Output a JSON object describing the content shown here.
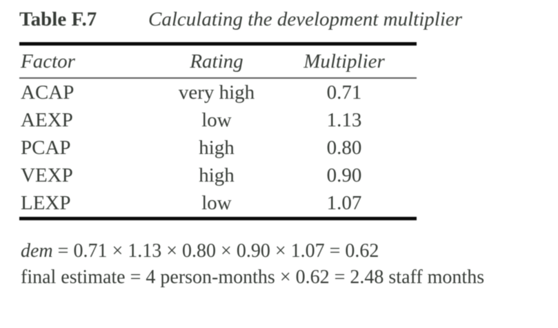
{
  "table": {
    "label": "Table F.7",
    "caption": "Calculating the development multiplier",
    "columns": [
      "Factor",
      "Rating",
      "Multiplier"
    ],
    "rows": [
      {
        "factor": "ACAP",
        "rating": "very high",
        "multiplier": "0.71"
      },
      {
        "factor": "AEXP",
        "rating": "low",
        "multiplier": "1.13"
      },
      {
        "factor": "PCAP",
        "rating": "high",
        "multiplier": "0.80"
      },
      {
        "factor": "VEXP",
        "rating": "high",
        "multiplier": "0.90"
      },
      {
        "factor": "LEXP",
        "rating": "low",
        "multiplier": "1.07"
      }
    ]
  },
  "formulas": {
    "dem_variable": "dem",
    "dem_expression": " = 0.71 × 1.13 × 0.80 × 0.90 × 1.07 = 0.62",
    "final_estimate": "final estimate = 4 person-months × 0.62 = 2.48 staff months"
  },
  "colors": {
    "text": "#373c37",
    "rule": "#0c0c0c",
    "rule-thin": "#5a5a5a",
    "background": "#ffffff"
  }
}
